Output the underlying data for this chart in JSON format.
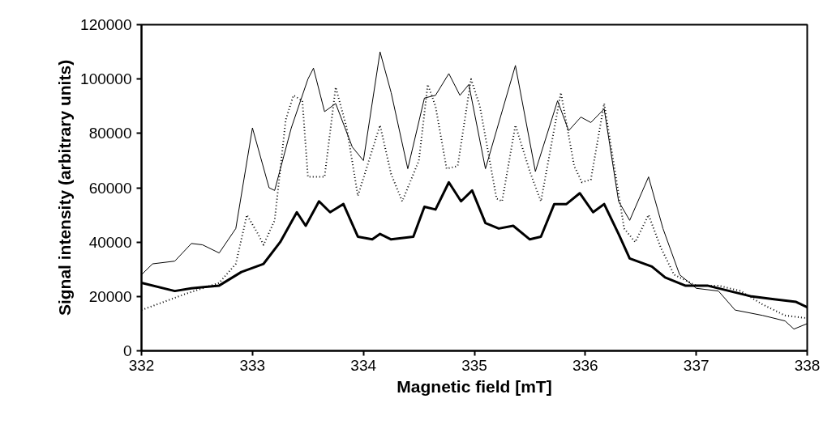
{
  "chart_data": {
    "type": "line",
    "xlabel": "Magnetic field [mT]",
    "ylabel": "Signal intensity (arbitrary units)",
    "xlim": [
      332,
      338
    ],
    "xticks": [
      332,
      333,
      334,
      335,
      336,
      337,
      338
    ],
    "ylim": [
      0,
      120000
    ],
    "yticks": [
      0,
      20000,
      40000,
      60000,
      80000,
      100000,
      120000
    ],
    "grid": false,
    "marker": "none",
    "series": [
      {
        "color": "#000000",
        "line_style": "solid",
        "x": [
          332.0,
          332.1,
          332.3,
          332.45,
          332.55,
          332.7,
          332.85,
          333.0,
          333.15,
          333.2,
          333.35,
          333.5,
          333.55,
          333.65,
          333.75,
          333.9,
          334.0,
          334.15,
          334.25,
          334.4,
          334.55,
          334.65,
          334.77,
          334.87,
          334.95,
          335.1,
          335.37,
          335.55,
          335.75,
          335.85,
          335.96,
          336.05,
          336.17,
          336.3,
          336.4,
          336.57,
          336.7,
          336.85,
          337.0,
          337.2,
          337.35,
          337.6,
          337.8,
          337.88,
          338.0
        ],
        "values": [
          28000,
          32000,
          33000,
          39500,
          39000,
          36000,
          45000,
          82000,
          60000,
          59000,
          82000,
          100000,
          104000,
          88000,
          91000,
          75000,
          70000,
          110000,
          95000,
          67000,
          93000,
          94000,
          102000,
          94000,
          98000,
          67000,
          105000,
          66000,
          92000,
          81000,
          86000,
          84000,
          89000,
          55000,
          48000,
          64000,
          45000,
          28000,
          23000,
          22000,
          15000,
          13000,
          11000,
          8000,
          10000
        ]
      },
      {
        "color": "#000000",
        "line_style": "dotted",
        "x": [
          332.0,
          332.4,
          332.7,
          332.85,
          332.95,
          333.05,
          333.1,
          333.2,
          333.3,
          333.37,
          333.45,
          333.5,
          333.65,
          333.75,
          333.85,
          333.95,
          334.05,
          334.15,
          334.25,
          334.35,
          334.5,
          334.58,
          334.65,
          334.75,
          334.85,
          334.97,
          335.05,
          335.2,
          335.25,
          335.37,
          335.5,
          335.6,
          335.78,
          335.9,
          335.97,
          336.05,
          336.17,
          336.35,
          336.45,
          336.57,
          336.68,
          336.8,
          337.0,
          337.2,
          337.4,
          337.6,
          337.8,
          338.0
        ],
        "values": [
          15000,
          21000,
          25000,
          32000,
          50000,
          43000,
          39000,
          48000,
          85000,
          94000,
          92000,
          64000,
          64000,
          97000,
          82000,
          57000,
          70000,
          83000,
          65000,
          55000,
          70000,
          98000,
          90000,
          67000,
          68000,
          100000,
          90000,
          56000,
          55000,
          83000,
          66000,
          55000,
          95000,
          68000,
          62000,
          63000,
          91000,
          45000,
          40000,
          50000,
          38000,
          28000,
          24000,
          24000,
          22000,
          17000,
          13000,
          12000
        ]
      },
      {
        "color": "#000000",
        "line_style": "solid",
        "x": [
          332.0,
          332.3,
          332.45,
          332.7,
          332.9,
          333.1,
          333.25,
          333.4,
          333.48,
          333.6,
          333.7,
          333.82,
          333.95,
          334.08,
          334.15,
          334.25,
          334.45,
          334.55,
          334.65,
          334.77,
          334.88,
          334.98,
          335.1,
          335.22,
          335.35,
          335.5,
          335.6,
          335.72,
          335.83,
          335.95,
          336.07,
          336.17,
          336.3,
          336.4,
          336.6,
          336.72,
          336.9,
          337.1,
          337.3,
          337.5,
          337.7,
          337.9,
          338.0
        ],
        "values": [
          25000,
          22000,
          23000,
          24000,
          29000,
          32000,
          40000,
          51000,
          46000,
          55000,
          51000,
          54000,
          42000,
          41000,
          43000,
          41000,
          42000,
          53000,
          52000,
          62000,
          55000,
          59000,
          47000,
          45000,
          46000,
          41000,
          42000,
          54000,
          54000,
          58000,
          51000,
          54000,
          43000,
          34000,
          31000,
          27000,
          24000,
          24000,
          22000,
          20000,
          19000,
          18000,
          16000
        ]
      }
    ]
  }
}
